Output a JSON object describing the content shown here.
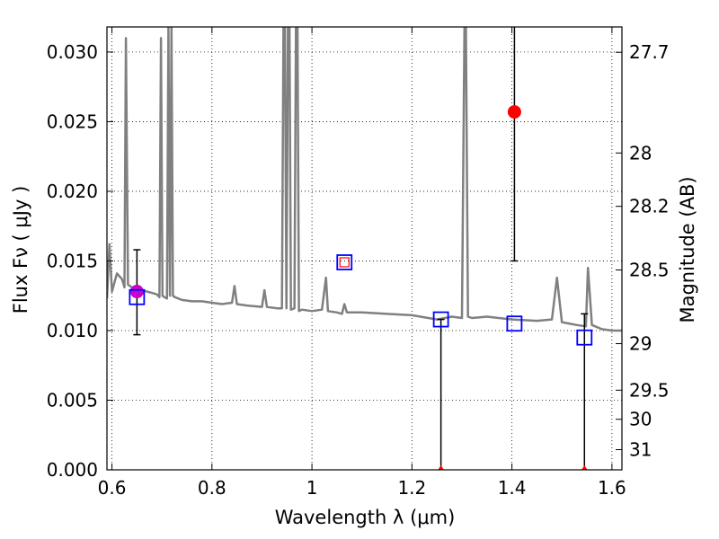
{
  "chart_data": {
    "type": "line",
    "xlabel": "Wavelength  λ (μm)",
    "ylabel": "Flux  Fν  ( μJy )",
    "ylabel_right": "Magnitude (AB)",
    "xlim": [
      0.59,
      1.62
    ],
    "ylim": [
      0.0,
      0.0318
    ],
    "grid": true,
    "x_ticks": [
      0.6,
      0.8,
      1.0,
      1.2,
      1.4,
      1.6
    ],
    "x_tick_labels": [
      "0.6",
      "0.8",
      "1",
      "1.2",
      "1.4",
      "1.6"
    ],
    "y_ticks": [
      0.0,
      0.005,
      0.01,
      0.015,
      0.02,
      0.025,
      0.03
    ],
    "y_tick_labels": [
      "0.000",
      "0.005",
      "0.010",
      "0.015",
      "0.020",
      "0.025",
      "0.030"
    ],
    "right_ticks": [
      {
        "label": "27.7",
        "flux": 0.02998
      },
      {
        "label": "28",
        "flux": 0.02275
      },
      {
        "label": "28.2",
        "flux": 0.01892
      },
      {
        "label": "28.5",
        "flux": 0.01435
      },
      {
        "label": "29",
        "flux": 0.00906
      },
      {
        "label": "29.5",
        "flux": 0.00572
      },
      {
        "label": "30",
        "flux": 0.00363
      },
      {
        "label": "31",
        "flux": 0.00145
      }
    ],
    "model_spectrum": {
      "color": "#808080",
      "x": [
        0.59,
        0.595,
        0.6,
        0.61,
        0.62,
        0.625,
        0.628,
        0.632,
        0.64,
        0.65,
        0.66,
        0.67,
        0.68,
        0.69,
        0.695,
        0.698,
        0.701,
        0.705,
        0.71,
        0.713,
        0.716,
        0.719,
        0.722,
        0.726,
        0.74,
        0.76,
        0.78,
        0.8,
        0.82,
        0.84,
        0.845,
        0.85,
        0.87,
        0.9,
        0.905,
        0.91,
        0.93,
        0.94,
        0.943,
        0.946,
        0.949,
        0.952,
        0.955,
        0.958,
        0.965,
        0.968,
        0.971,
        0.974,
        0.98,
        1.0,
        1.02,
        1.028,
        1.032,
        1.05,
        1.06,
        1.065,
        1.07,
        1.1,
        1.15,
        1.2,
        1.25,
        1.28,
        1.3,
        1.305,
        1.308,
        1.312,
        1.32,
        1.35,
        1.4,
        1.45,
        1.48,
        1.49,
        1.5,
        1.53,
        1.548,
        1.552,
        1.56,
        1.58,
        1.6,
        1.62
      ],
      "y": [
        0.0123,
        0.0162,
        0.0128,
        0.0141,
        0.0137,
        0.0131,
        0.031,
        0.0133,
        0.0131,
        0.013,
        0.0129,
        0.0128,
        0.0127,
        0.0126,
        0.0124,
        0.031,
        0.0125,
        0.0124,
        0.0123,
        0.0318,
        0.0125,
        0.0318,
        0.0125,
        0.0124,
        0.0122,
        0.0121,
        0.0121,
        0.012,
        0.0119,
        0.012,
        0.0132,
        0.0119,
        0.0118,
        0.0117,
        0.0129,
        0.0117,
        0.0116,
        0.0116,
        0.0318,
        0.0318,
        0.0116,
        0.0318,
        0.0318,
        0.0115,
        0.0116,
        0.0318,
        0.0318,
        0.0114,
        0.0115,
        0.0114,
        0.0115,
        0.0138,
        0.0114,
        0.0113,
        0.0112,
        0.0119,
        0.0113,
        0.0113,
        0.0112,
        0.0111,
        0.0108,
        0.011,
        0.0109,
        0.0318,
        0.0318,
        0.011,
        0.0109,
        0.011,
        0.0108,
        0.0107,
        0.0108,
        0.0138,
        0.0106,
        0.0104,
        0.0103,
        0.0145,
        0.0104,
        0.0101,
        0.01,
        0.01
      ]
    },
    "model_photometry": {
      "marker": "open-square",
      "color": "#0000ff",
      "points": [
        {
          "x": 0.65,
          "y": 0.0124
        },
        {
          "x": 1.065,
          "y": 0.0149
        },
        {
          "x": 1.258,
          "y": 0.0108
        },
        {
          "x": 1.405,
          "y": 0.0105
        },
        {
          "x": 1.545,
          "y": 0.0095
        }
      ]
    },
    "observed": {
      "marker": "filled-circle",
      "color": "#ff0000",
      "points": [
        {
          "x": 0.65,
          "y": 0.0128,
          "err_low": 0.0097,
          "err_high": 0.0158,
          "color": "#cc00cc"
        },
        {
          "x": 1.065,
          "y": 0.0149,
          "err_low": 0.0149,
          "err_high": 0.0149,
          "marker": "open-square-small"
        },
        {
          "x": 1.258,
          "y": 0.0,
          "err_low": 0.0,
          "err_high": 0.0108
        },
        {
          "x": 1.405,
          "y": 0.0257,
          "err_low": 0.015,
          "err_high": 0.0318
        },
        {
          "x": 1.545,
          "y": 0.0,
          "err_low": 0.0,
          "err_high": 0.0112
        }
      ]
    }
  }
}
